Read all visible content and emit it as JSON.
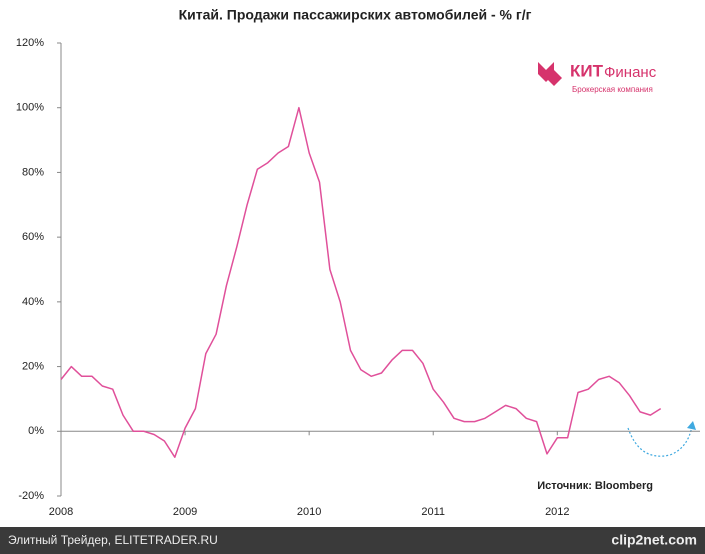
{
  "chart_data": {
    "type": "line",
    "title": "Китай. Продажи пассажирских автомобилей - % г/г",
    "source": "Источник: Bloomberg",
    "logo": {
      "brand_a": "КИТ",
      "brand_b": "Финанс",
      "tagline": "Брокерская компания"
    },
    "x": [
      2008,
      2008.083,
      2008.167,
      2008.25,
      2008.333,
      2008.417,
      2008.5,
      2008.583,
      2008.667,
      2008.75,
      2008.833,
      2008.917,
      2009,
      2009.083,
      2009.167,
      2009.25,
      2009.333,
      2009.417,
      2009.5,
      2009.583,
      2009.667,
      2009.75,
      2009.833,
      2009.917,
      2010,
      2010.083,
      2010.167,
      2010.25,
      2010.333,
      2010.417,
      2010.5,
      2010.583,
      2010.667,
      2010.75,
      2010.833,
      2010.917,
      2011,
      2011.083,
      2011.167,
      2011.25,
      2011.333,
      2011.417,
      2011.5,
      2011.583,
      2011.667,
      2011.75,
      2011.833,
      2011.917,
      2012,
      2012.083,
      2012.167,
      2012.25,
      2012.333,
      2012.417,
      2012.5,
      2012.583,
      2012.667,
      2012.75,
      2012.833
    ],
    "series": [
      {
        "name": "Продажи",
        "color": "#e0509a",
        "values": [
          16,
          20,
          17,
          17,
          14,
          13,
          5,
          0,
          0,
          -1,
          -3,
          -8,
          1,
          7,
          24,
          30,
          45,
          57,
          70,
          81,
          83,
          86,
          88,
          100,
          86,
          77,
          50,
          40,
          25,
          19,
          17,
          18,
          22,
          25,
          25,
          21,
          13,
          9,
          4,
          3,
          3,
          4,
          6,
          8,
          7,
          4,
          3,
          -7,
          -2,
          -2,
          12,
          13,
          16,
          17,
          15,
          11,
          6,
          5,
          7
        ]
      }
    ],
    "xlim": [
      2008,
      2013.15
    ],
    "xticks": [
      2008,
      2009,
      2010,
      2011,
      2012
    ],
    "ylim": [
      -20,
      120
    ],
    "yticks": [
      {
        "value": -20,
        "label": "-20%"
      },
      {
        "value": 0,
        "label": "0%"
      },
      {
        "value": 20,
        "label": "20%"
      },
      {
        "value": 40,
        "label": "40%"
      },
      {
        "value": 60,
        "label": "60%"
      },
      {
        "value": 80,
        "label": "80%"
      },
      {
        "value": 100,
        "label": "100%"
      },
      {
        "value": 120,
        "label": "120%"
      }
    ],
    "grid": false
  },
  "footer": {
    "site": "Элитный Трейдер, ELITETRADER.RU",
    "watermark": "clip2net.com"
  }
}
